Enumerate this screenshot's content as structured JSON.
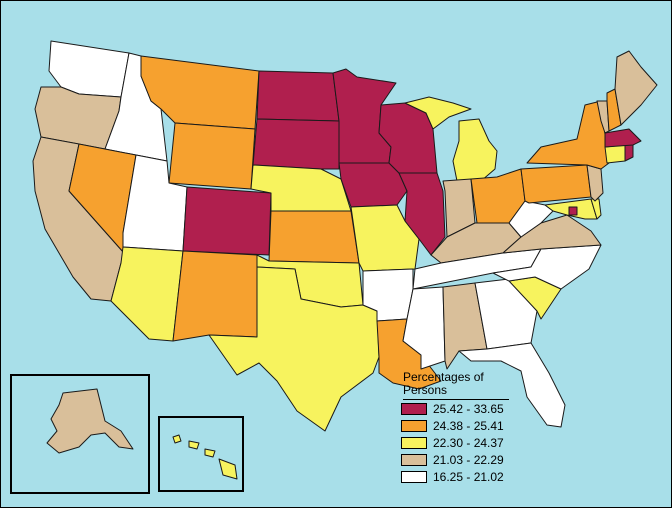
{
  "legend": {
    "title": "Percentages of Persons",
    "items": [
      {
        "label": "25.42 - 33.65",
        "color": "#b01f4e"
      },
      {
        "label": "24.38 - 25.41",
        "color": "#f6a12f"
      },
      {
        "label": "22.30 - 24.37",
        "color": "#f7f35e"
      },
      {
        "label": "21.03 - 22.29",
        "color": "#d9bf9a"
      },
      {
        "label": "16.25 - 21.02",
        "color": "#ffffff"
      }
    ]
  },
  "colors": {
    "water": "#a8dfe9",
    "border": "#1a1a1a"
  },
  "states": {
    "WA": "16.25 - 21.02",
    "OR": "21.03 - 22.29",
    "CA": "21.03 - 22.29",
    "ID": "16.25 - 21.02",
    "NV": "24.38 - 25.41",
    "MT": "24.38 - 25.41",
    "WY": "24.38 - 25.41",
    "UT": "16.25 - 21.02",
    "AZ": "22.30 - 24.37",
    "CO": "25.42 - 33.65",
    "NM": "24.38 - 25.41",
    "ND": "25.42 - 33.65",
    "SD": "25.42 - 33.65",
    "NE": "22.30 - 24.37",
    "KS": "24.38 - 25.41",
    "OK": "22.30 - 24.37",
    "TX": "22.30 - 24.37",
    "MN": "25.42 - 33.65",
    "IA": "25.42 - 33.65",
    "MO": "22.30 - 24.37",
    "AR": "16.25 - 21.02",
    "LA": "24.38 - 25.41",
    "WI": "25.42 - 33.65",
    "IL": "25.42 - 33.65",
    "MI": "22.30 - 24.37",
    "IN": "21.03 - 22.29",
    "OH": "24.38 - 25.41",
    "KY": "21.03 - 22.29",
    "TN": "16.25 - 21.02",
    "MS": "16.25 - 21.02",
    "AL": "21.03 - 22.29",
    "GA": "16.25 - 21.02",
    "FL": "16.25 - 21.02",
    "SC": "22.30 - 24.37",
    "NC": "16.25 - 21.02",
    "VA": "21.03 - 22.29",
    "WV": "16.25 - 21.02",
    "MD": "22.30 - 24.37",
    "DE": "22.30 - 24.37",
    "DC": "25.42 - 33.65",
    "PA": "24.38 - 25.41",
    "NJ": "21.03 - 22.29",
    "NY": "24.38 - 25.41",
    "CT": "22.30 - 24.37",
    "RI": "25.42 - 33.65",
    "MA": "25.42 - 33.65",
    "VT": "21.03 - 22.29",
    "NH": "24.38 - 25.41",
    "ME": "21.03 - 22.29",
    "AK": "21.03 - 22.29",
    "HI": "22.30 - 24.37"
  }
}
